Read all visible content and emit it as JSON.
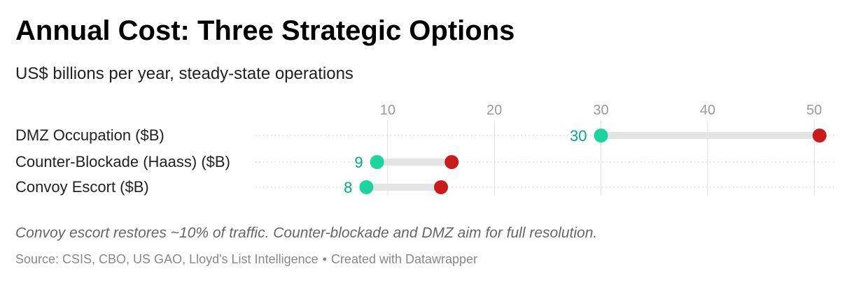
{
  "header": {
    "title": "Annual Cost: Three Strategic Options",
    "subtitle": "US$ billions per year, steady-state operations"
  },
  "footer": {
    "note": "Convoy escort restores ~10% of traffic. Counter-blockade and DMZ aim for full resolution.",
    "source": "Source: CSIS, CBO, US GAO, Lloyd's List Intelligence",
    "separator": "•",
    "credit": "Created with Datawrapper"
  },
  "colors": {
    "start_dot": "#1fd3a0",
    "end_dot": "#c71e1d",
    "start_label": "#0aa57a",
    "range_bar": "#e4e4e4",
    "grid": "#e0e0e0",
    "tick_label": "#9a9a9a"
  },
  "chart_data": {
    "type": "range-dot",
    "title": "Annual Cost: Three Strategic Options",
    "subtitle": "US$ billions per year, steady-state operations",
    "x_ticks": [
      10,
      20,
      30,
      40,
      50
    ],
    "xlim": [
      2,
      51.5
    ],
    "grid": true,
    "rows": [
      {
        "label": "DMZ Occupation ($B)",
        "low": 30,
        "high": 50.5,
        "low_label": "30"
      },
      {
        "label": "Counter-Blockade (Haass) ($B)",
        "low": 9,
        "high": 16,
        "low_label": "9"
      },
      {
        "label": "Convoy Escort ($B)",
        "low": 8,
        "high": 15,
        "low_label": "8"
      }
    ]
  }
}
